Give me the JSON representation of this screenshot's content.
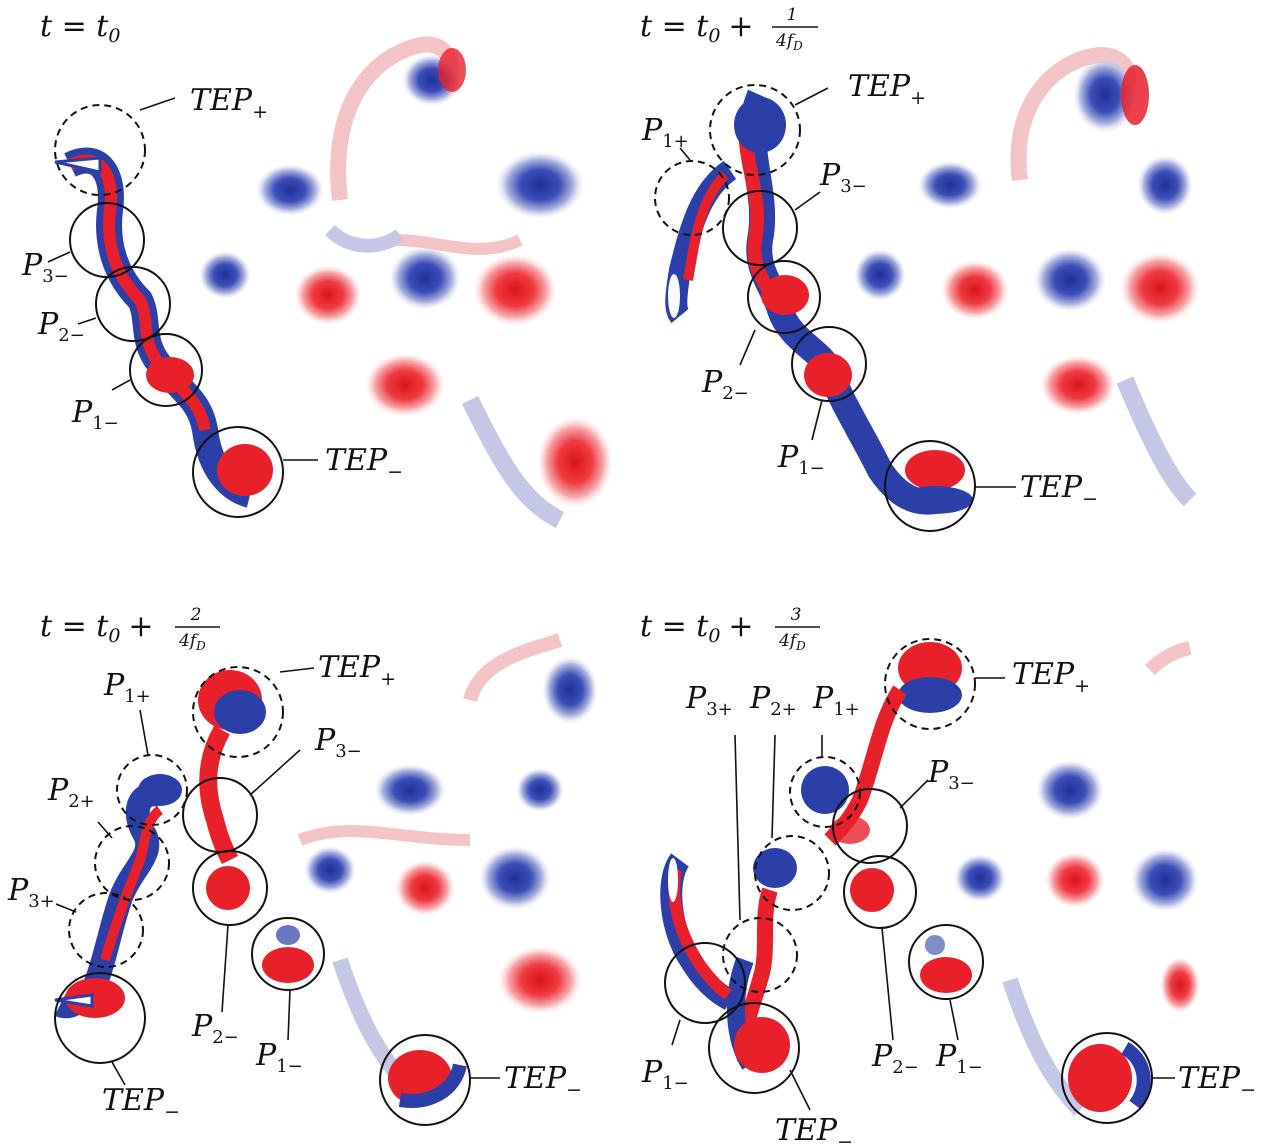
{
  "figure": {
    "panels": [
      {
        "id": "a",
        "time": {
          "prefix": "t = t",
          "sub": "0",
          "plus": "",
          "num": "",
          "den": ""
        },
        "labels": {
          "tep_plus": "TEP",
          "tep_minus": "TEP",
          "p3m": "P",
          "p2m": "P",
          "p1m": "P"
        }
      },
      {
        "id": "b",
        "time": {
          "prefix": "t = t",
          "sub": "0",
          "plus": "+",
          "num": "1",
          "den": "4f"
        },
        "labels": {
          "tep_plus": "TEP",
          "tep_minus": "TEP",
          "p1p": "P",
          "p3m": "P",
          "p2m": "P",
          "p1m": "P"
        }
      },
      {
        "id": "c",
        "time": {
          "prefix": "t = t",
          "sub": "0",
          "plus": "+",
          "num": "2",
          "den": "4f"
        },
        "labels": {
          "tep_plus": "TEP",
          "tep_minus": "TEP",
          "p1p": "P",
          "p2p": "P",
          "p3p": "P",
          "p3m": "P",
          "p2m": "P",
          "p1m": "P"
        }
      },
      {
        "id": "d",
        "time": {
          "prefix": "t = t",
          "sub": "0",
          "plus": "+",
          "num": "3",
          "den": "4f"
        },
        "labels": {
          "tep_plus": "TEP",
          "tep_minus": "TEP",
          "p3p": "P",
          "p2p": "P",
          "p1p": "P",
          "p3m": "P",
          "p2m": "P",
          "p1m": "P"
        }
      }
    ],
    "subscripts": {
      "plus": "+",
      "minus": "−",
      "p1m": "1−",
      "p2m": "2−",
      "p3m": "3−",
      "p1p": "1+",
      "p2p": "2+",
      "p3p": "3+",
      "D": "D"
    },
    "colors": {
      "positive_vorticity": "#e8202a",
      "negative_vorticity": "#2b3fa8",
      "positive_light": "#f4c3c6",
      "negative_light": "#c4c8e6",
      "line": "#111111"
    }
  }
}
